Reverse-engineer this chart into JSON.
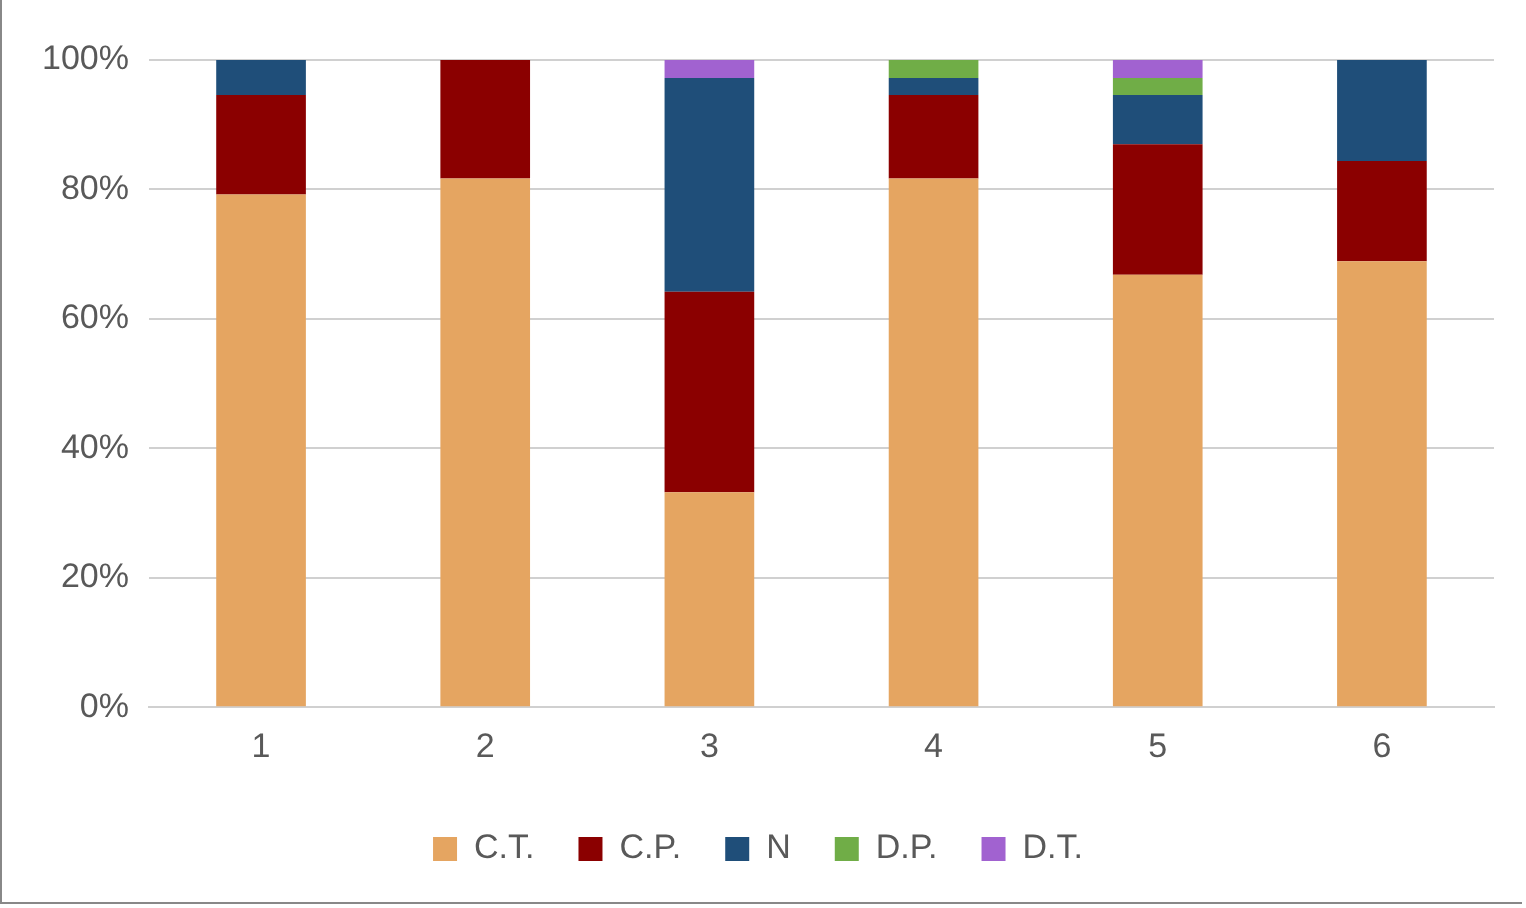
{
  "chart_data": {
    "type": "bar",
    "stacked": true,
    "categories": [
      "1",
      "2",
      "3",
      "4",
      "5",
      "6"
    ],
    "series": [
      {
        "name": "C.T.",
        "color": "#e5a561",
        "values": [
          79.2,
          81.7,
          33.2,
          81.7,
          66.8,
          68.9
        ]
      },
      {
        "name": "C.P.",
        "color": "#8b0000",
        "values": [
          15.4,
          18.3,
          31.0,
          12.9,
          20.2,
          15.5
        ]
      },
      {
        "name": "N",
        "color": "#1f4e79",
        "values": [
          5.4,
          0,
          33.0,
          2.6,
          7.6,
          15.6
        ]
      },
      {
        "name": "D.P.",
        "color": "#70ad47",
        "values": [
          0,
          0,
          0,
          2.8,
          2.6,
          0
        ]
      },
      {
        "name": "D.T.",
        "color": "#a162d0",
        "values": [
          0,
          0,
          2.8,
          0,
          2.8,
          0
        ]
      }
    ],
    "ylim": [
      0,
      100
    ],
    "yticks": [
      {
        "value": 0,
        "label": "0%"
      },
      {
        "value": 20,
        "label": "20%"
      },
      {
        "value": 40,
        "label": "40%"
      },
      {
        "value": 60,
        "label": "60%"
      },
      {
        "value": 80,
        "label": "80%"
      },
      {
        "value": 100,
        "label": "100%"
      }
    ],
    "grid": "y",
    "legend": "bottom"
  }
}
